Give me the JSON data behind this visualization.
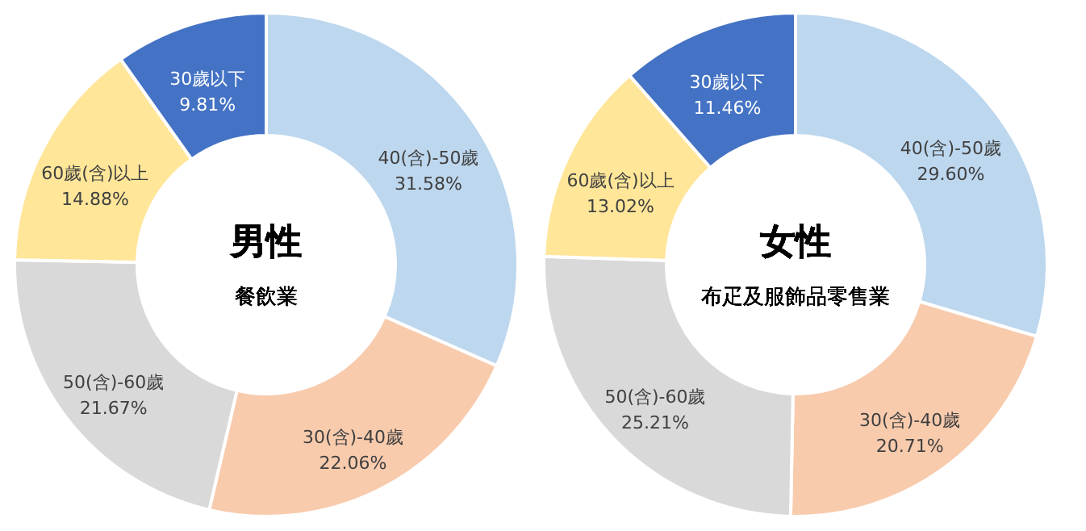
{
  "chart_data": [
    {
      "type": "donut",
      "title": "男性",
      "subtitle": "餐飲業",
      "categories": [
        "40(含)-50歲",
        "30(含)-40歲",
        "50(含)-60歲",
        "60歲(含)以上",
        "30歲以下"
      ],
      "values": [
        31.58,
        22.06,
        21.67,
        14.88,
        9.81
      ],
      "value_labels": [
        "31.58%",
        "22.06%",
        "21.67%",
        "14.88%",
        "9.81%"
      ],
      "colors": [
        "#bdd7ee",
        "#f8cbad",
        "#d9d9d9",
        "#ffe699",
        "#4472c4"
      ],
      "legend": false
    },
    {
      "type": "donut",
      "title": "女性",
      "subtitle": "布疋及服飾品零售業",
      "categories": [
        "40(含)-50歲",
        "30(含)-40歲",
        "50(含)-60歲",
        "60歲(含)以上",
        "30歲以下"
      ],
      "values": [
        29.6,
        20.71,
        25.21,
        13.02,
        11.46
      ],
      "value_labels": [
        "29.60%",
        "20.71%",
        "25.21%",
        "13.02%",
        "11.46%"
      ],
      "colors": [
        "#bdd7ee",
        "#f8cbad",
        "#d9d9d9",
        "#ffe699",
        "#4472c4"
      ],
      "legend": false
    }
  ]
}
